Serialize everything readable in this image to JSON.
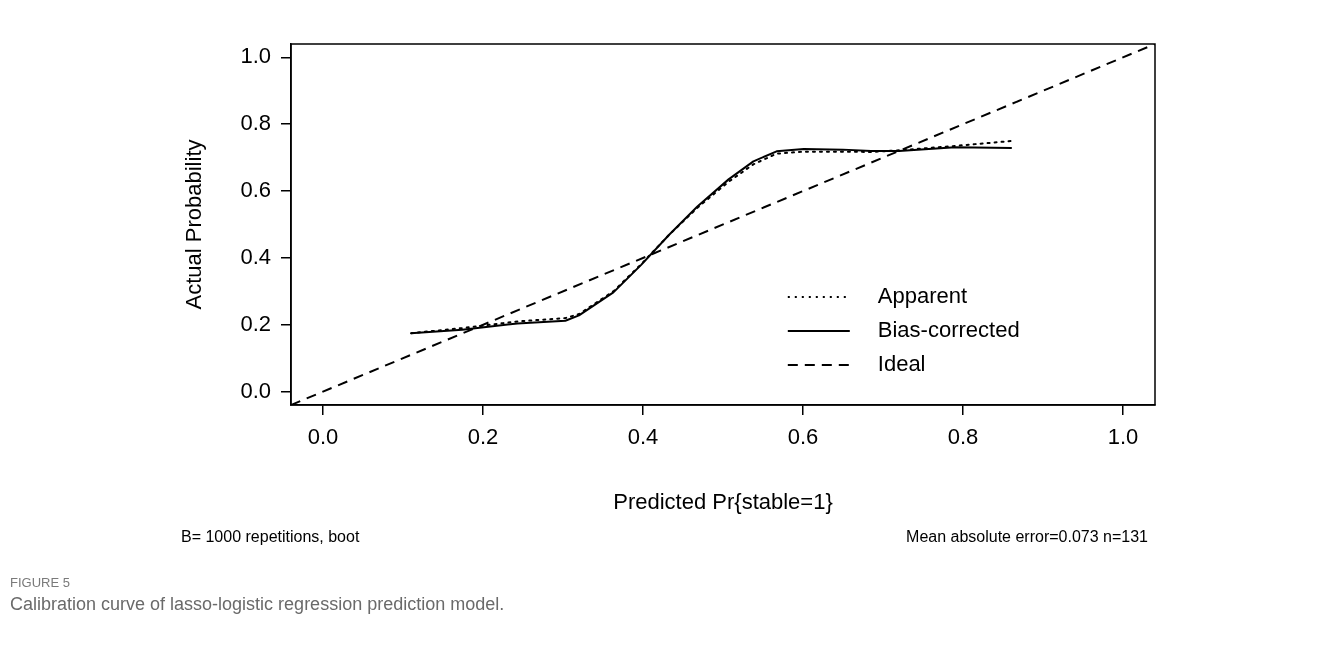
{
  "chart_data": {
    "type": "line",
    "xlabel": "Predicted Pr{stable=1}",
    "ylabel": "Actual Probability",
    "xlim": [
      -0.04,
      1.04
    ],
    "ylim": [
      -0.04,
      1.04
    ],
    "xticks": [
      {
        "value": 0,
        "label": "0.0"
      },
      0.2,
      0.4,
      0.6,
      0.8,
      {
        "value": 1,
        "label": "1.0"
      }
    ],
    "yticks": [
      {
        "value": 0,
        "label": "0.0"
      },
      0.2,
      0.4,
      0.6,
      0.8,
      {
        "value": 1,
        "label": "1.0"
      }
    ],
    "grid": false,
    "legend": "bottom right",
    "marker": "none",
    "series": [
      {
        "name": "Apparent",
        "color": "#000000",
        "line_style": "dotted",
        "x": [
          0.11,
          0.174,
          0.243,
          0.303,
          0.32,
          0.363,
          0.398,
          0.433,
          0.468,
          0.507,
          0.538,
          0.567,
          0.601,
          0.65,
          0.685,
          0.72,
          0.79,
          0.861
        ],
        "values": [
          0.175,
          0.19,
          0.21,
          0.22,
          0.232,
          0.3,
          0.382,
          0.47,
          0.55,
          0.628,
          0.68,
          0.712,
          0.718,
          0.718,
          0.717,
          0.722,
          0.735,
          0.75
        ]
      },
      {
        "name": "Bias-corrected",
        "color": "#000000",
        "line_style": "solid",
        "x": [
          0.11,
          0.174,
          0.243,
          0.303,
          0.32,
          0.363,
          0.398,
          0.433,
          0.468,
          0.507,
          0.538,
          0.567,
          0.601,
          0.65,
          0.685,
          0.72,
          0.79,
          0.861
        ],
        "values": [
          0.175,
          0.185,
          0.204,
          0.212,
          0.228,
          0.297,
          0.38,
          0.47,
          0.554,
          0.635,
          0.689,
          0.719,
          0.726,
          0.724,
          0.72,
          0.72,
          0.731,
          0.729
        ]
      },
      {
        "name": "Ideal",
        "color": "#000000",
        "line_style": "dashed",
        "x": [
          -0.04,
          1.04
        ],
        "values": [
          -0.04,
          1.04
        ]
      }
    ],
    "annotations": [
      "B= 1000 repetitions, boot",
      "Mean absolute error=0.073 n=131",
      "FIGURE 5",
      "Calibration curve of lasso-logistic regression prediction model."
    ]
  }
}
